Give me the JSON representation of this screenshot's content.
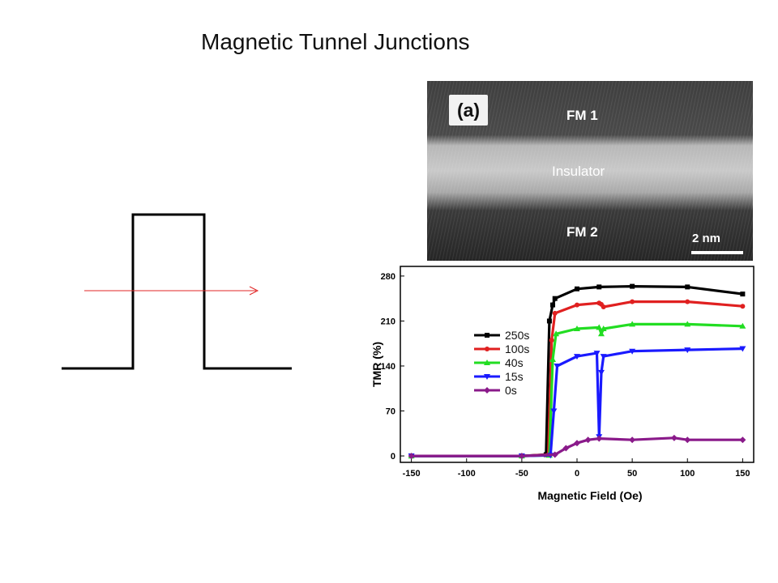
{
  "slide": {
    "title": "Magnetic Tunnel Junctions"
  },
  "tem_image": {
    "panel_label": "(a)",
    "layer_top": "FM 1",
    "layer_middle": "Insulator",
    "layer_bottom": "FM 2",
    "scale_bar": "2 nm"
  },
  "chart_data": {
    "type": "line",
    "title": "",
    "xlabel": "Magnetic Field (Oe)",
    "ylabel": "TMR (%)",
    "xlim": [
      -160,
      160
    ],
    "ylim": [
      -10,
      295
    ],
    "xticks": [
      -150,
      -100,
      -50,
      0,
      50,
      100,
      150
    ],
    "yticks": [
      0,
      70,
      140,
      210,
      280
    ],
    "legend_position": "left",
    "series": [
      {
        "name": "250s",
        "color": "#000000",
        "marker": "square",
        "x": [
          -150,
          -50,
          -28,
          -25,
          -22,
          -20,
          0,
          20,
          50,
          100,
          150
        ],
        "y": [
          0,
          0,
          2,
          210,
          235,
          245,
          260,
          263,
          264,
          263,
          252
        ]
      },
      {
        "name": "100s",
        "color": "#e02020",
        "marker": "circle",
        "x": [
          -150,
          -50,
          -26,
          -23,
          -20,
          0,
          20,
          22,
          24,
          50,
          100,
          150
        ],
        "y": [
          0,
          0,
          2,
          180,
          222,
          235,
          238,
          236,
          232,
          240,
          240,
          233
        ]
      },
      {
        "name": "40s",
        "color": "#22dd22",
        "marker": "triangle-up",
        "x": [
          -150,
          -50,
          -25,
          -22,
          -19,
          0,
          20,
          22,
          24,
          50,
          100,
          150
        ],
        "y": [
          0,
          0,
          1,
          150,
          190,
          198,
          200,
          190,
          198,
          205,
          205,
          202
        ]
      },
      {
        "name": "15s",
        "color": "#1a1aff",
        "marker": "triangle-down",
        "x": [
          -150,
          -50,
          -24,
          -21,
          -18,
          0,
          18,
          20,
          22,
          24,
          50,
          100,
          150
        ],
        "y": [
          0,
          0,
          1,
          70,
          140,
          155,
          160,
          30,
          130,
          155,
          163,
          165,
          167
        ]
      },
      {
        "name": "0s",
        "color": "#8a1a8a",
        "marker": "diamond",
        "x": [
          -150,
          -50,
          -20,
          -10,
          0,
          10,
          20,
          50,
          88,
          100,
          150
        ],
        "y": [
          0,
          0,
          2,
          12,
          20,
          25,
          27,
          25,
          28,
          25,
          25
        ]
      }
    ]
  }
}
